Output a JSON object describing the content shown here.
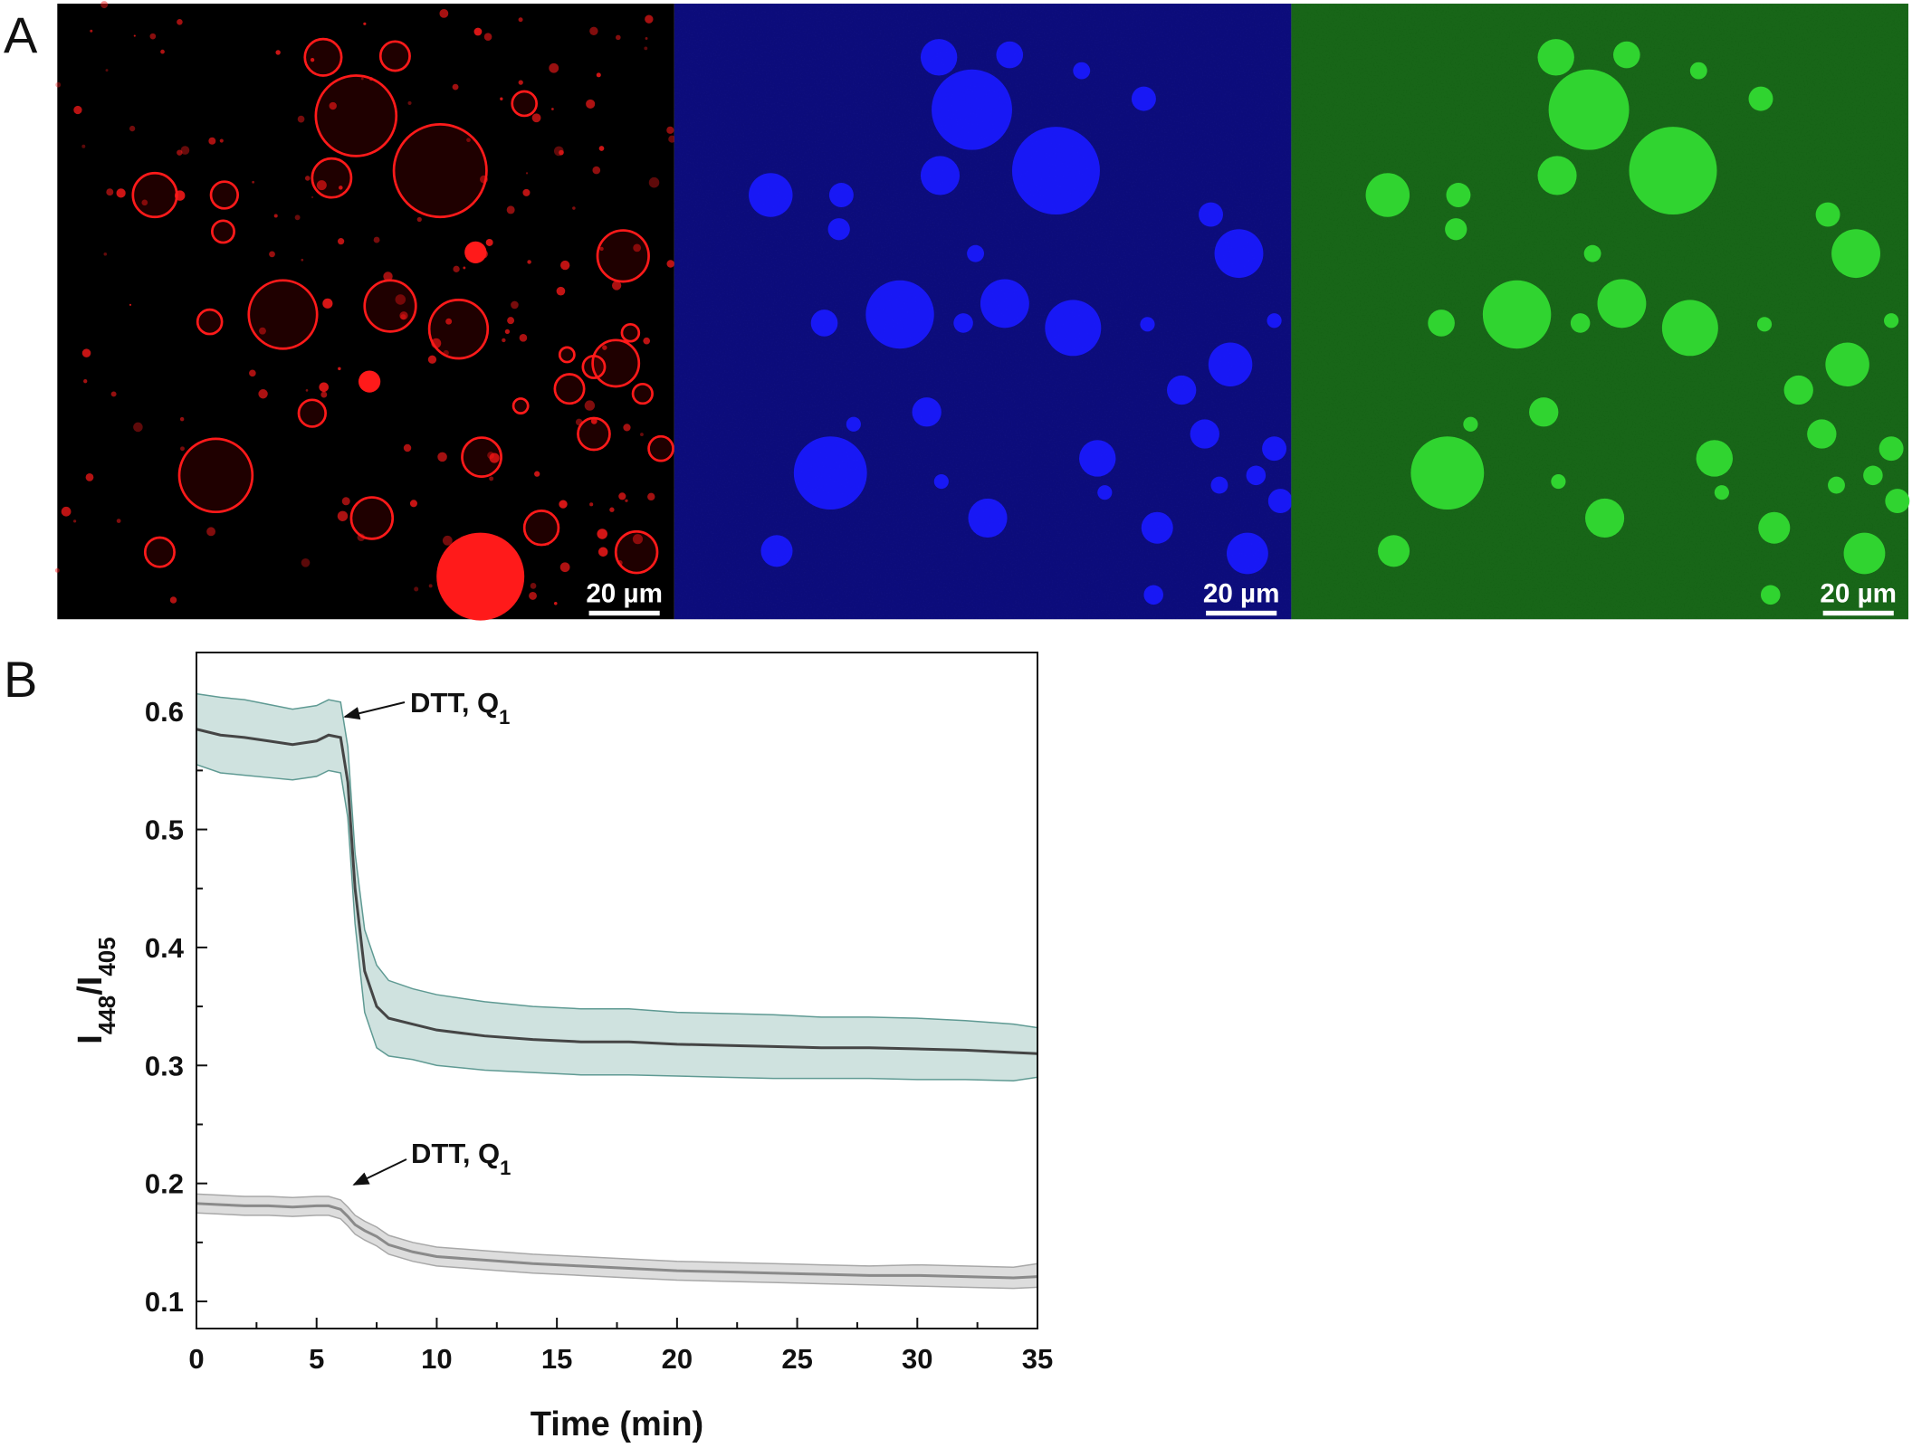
{
  "figure": {
    "panel_a_label": "A",
    "panel_b_label": "B",
    "images": [
      {
        "channel": "red",
        "scale_bar": "20 µm"
      },
      {
        "channel": "blue",
        "scale_bar": "20 µm"
      },
      {
        "channel": "green",
        "scale_bar": "20 µm"
      }
    ]
  },
  "chart_data": {
    "type": "line",
    "xlabel": "Time (min)",
    "ylabel": {
      "parts": [
        "I",
        "448",
        "/I",
        "405"
      ]
    },
    "xlim": [
      0,
      35
    ],
    "xticks": [
      0,
      5,
      10,
      15,
      20,
      25,
      30,
      35
    ],
    "xticks_minor": [
      2.5,
      7.5,
      12.5,
      17.5,
      22.5,
      27.5,
      32.5
    ],
    "ylim": [
      0.077,
      0.65
    ],
    "yticks": [
      0.1,
      0.2,
      0.3,
      0.4,
      0.5,
      0.6
    ],
    "yticks_minor": [
      0.15,
      0.25,
      0.35,
      0.45,
      0.55
    ],
    "x": [
      0,
      1,
      2,
      3,
      4,
      5,
      5.5,
      6,
      6.3,
      6.6,
      7,
      7.5,
      8,
      9,
      10,
      12,
      14,
      16,
      18,
      20,
      22,
      24,
      26,
      28,
      30,
      32,
      34,
      35
    ],
    "series": [
      {
        "color": "#454545",
        "band_color": "#cfe2df",
        "edge_color": "#5f9a93",
        "values": [
          0.585,
          0.58,
          0.578,
          0.575,
          0.572,
          0.575,
          0.58,
          0.578,
          0.54,
          0.45,
          0.38,
          0.35,
          0.34,
          0.335,
          0.33,
          0.325,
          0.322,
          0.32,
          0.32,
          0.318,
          0.317,
          0.316,
          0.315,
          0.315,
          0.314,
          0.313,
          0.311,
          0.31
        ],
        "lower": [
          0.555,
          0.548,
          0.546,
          0.544,
          0.542,
          0.545,
          0.55,
          0.548,
          0.51,
          0.42,
          0.345,
          0.315,
          0.308,
          0.305,
          0.3,
          0.296,
          0.294,
          0.292,
          0.292,
          0.291,
          0.29,
          0.289,
          0.289,
          0.289,
          0.288,
          0.288,
          0.287,
          0.29
        ],
        "upper": [
          0.615,
          0.612,
          0.61,
          0.606,
          0.602,
          0.605,
          0.61,
          0.608,
          0.57,
          0.48,
          0.415,
          0.385,
          0.372,
          0.365,
          0.36,
          0.354,
          0.35,
          0.348,
          0.348,
          0.345,
          0.344,
          0.343,
          0.341,
          0.341,
          0.34,
          0.338,
          0.335,
          0.332
        ]
      },
      {
        "color": "#8a8a8a",
        "band_color": "#dddddd",
        "edge_color": "#a8a8a8",
        "values": [
          0.183,
          0.182,
          0.181,
          0.181,
          0.18,
          0.181,
          0.181,
          0.178,
          0.172,
          0.165,
          0.16,
          0.155,
          0.148,
          0.142,
          0.138,
          0.135,
          0.132,
          0.13,
          0.128,
          0.126,
          0.125,
          0.124,
          0.123,
          0.122,
          0.122,
          0.121,
          0.12,
          0.121
        ],
        "lower": [
          0.175,
          0.174,
          0.173,
          0.173,
          0.172,
          0.173,
          0.173,
          0.17,
          0.164,
          0.157,
          0.152,
          0.147,
          0.14,
          0.134,
          0.13,
          0.127,
          0.124,
          0.122,
          0.12,
          0.118,
          0.117,
          0.116,
          0.115,
          0.114,
          0.113,
          0.112,
          0.111,
          0.112
        ],
        "upper": [
          0.191,
          0.19,
          0.189,
          0.189,
          0.188,
          0.189,
          0.189,
          0.186,
          0.18,
          0.173,
          0.168,
          0.163,
          0.156,
          0.15,
          0.146,
          0.143,
          0.14,
          0.138,
          0.136,
          0.134,
          0.133,
          0.132,
          0.131,
          0.13,
          0.131,
          0.13,
          0.129,
          0.132
        ]
      }
    ],
    "annotations": [
      {
        "text": "DTT, Q",
        "sub": "1"
      },
      {
        "text": "DTT, Q",
        "sub": "1"
      }
    ]
  }
}
